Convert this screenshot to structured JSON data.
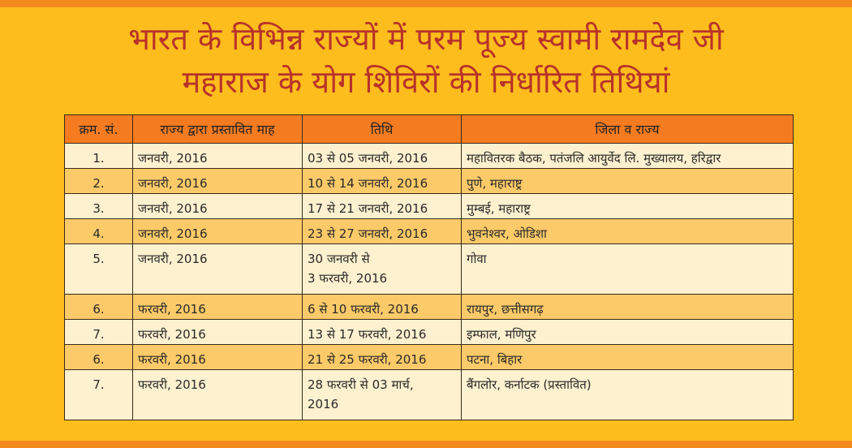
{
  "header": {
    "title_lines": [
      "भारत के विभिन्न राज्यों में परम पूज्य स्वामी रामदेव जी",
      "महाराज के योग शिविरों की निर्धारित तिथियां"
    ]
  },
  "table": {
    "columns": [
      "क्रम. सं.",
      "राज्य द्वारा प्रस्तावित माह",
      "तिथि",
      "जिला व राज्य"
    ],
    "rows": [
      [
        [
          "1."
        ],
        [
          "जनवरी, 2016"
        ],
        [
          "03 से 05 जनवरी, 2016"
        ],
        [
          "महावितरक बैठक, पतंजलि आयुर्वेद लि. मुख्यालय, हरिद्वार"
        ]
      ],
      [
        [
          "2."
        ],
        [
          "जनवरी, 2016"
        ],
        [
          "10 से 14 जनवरी, 2016"
        ],
        [
          "पुणे, महाराष्ट्र"
        ]
      ],
      [
        [
          "3."
        ],
        [
          "जनवरी, 2016"
        ],
        [
          "17 से 21 जनवरी, 2016"
        ],
        [
          "मुम्बई, महाराष्ट्र"
        ]
      ],
      [
        [
          "4."
        ],
        [
          "जनवरी, 2016"
        ],
        [
          "23 से 27 जनवरी, 2016"
        ],
        [
          "भुवनेश्वर, ओडिशा"
        ]
      ],
      [
        [
          "5."
        ],
        [
          "जनवरी, 2016"
        ],
        [
          "30 जनवरी से",
          "3 फरवरी, 2016"
        ],
        [
          "गोवा"
        ]
      ],
      [
        [
          "6."
        ],
        [
          "फरवरी, 2016"
        ],
        [
          "6 से 10 फरवरी, 2016"
        ],
        [
          "रायपुर, छत्तीसगढ़"
        ]
      ],
      [
        [
          "7."
        ],
        [
          "फरवरी, 2016"
        ],
        [
          "13 से 17 फरवरी, 2016"
        ],
        [
          "इम्फाल, मणिपुर"
        ]
      ],
      [
        [
          "6."
        ],
        [
          "फरवरी, 2016"
        ],
        [
          "21 से 25 फरवरी, 2016"
        ],
        [
          "पटना, बिहार"
        ]
      ],
      [
        [
          "7."
        ],
        [
          "फरवरी, 2016"
        ],
        [
          "28 फरवरी से 03 मार्च,",
          "2016"
        ],
        [
          "बैंगलोर, कर्नाटक (प्रस्तावित)"
        ]
      ]
    ]
  }
}
